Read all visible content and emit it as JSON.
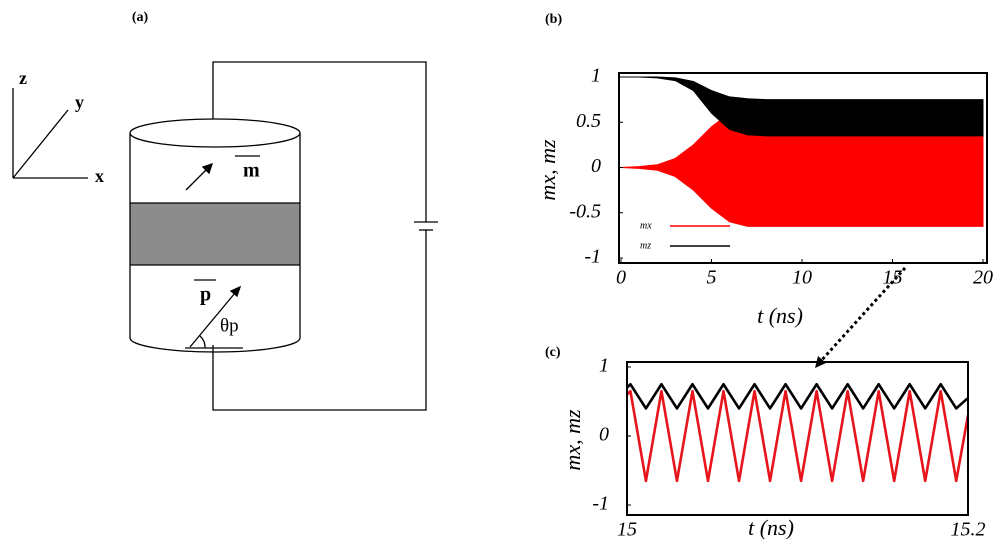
{
  "diagram": {
    "label": "(a)",
    "axis_z": "z",
    "axis_y": "y",
    "axis_x": "x",
    "magnet_m": "m",
    "magnet_p": "p",
    "angle": "θp"
  },
  "chart_data": [
    {
      "type": "band",
      "label": "(b)",
      "xlabel": "t (ns)",
      "ylabel": "mx, mz",
      "xlim": [
        0,
        20
      ],
      "ylim": [
        -1,
        1
      ],
      "xticks": [
        0,
        5,
        10,
        15,
        20
      ],
      "yticks": [
        -1,
        -0.5,
        0,
        0.5,
        1
      ],
      "x": [
        0,
        1,
        2,
        3,
        4,
        5,
        6,
        7,
        8,
        20
      ],
      "series": [
        {
          "name": "mx",
          "color": "#ff0000",
          "upper": [
            0,
            0.01,
            0.03,
            0.1,
            0.25,
            0.45,
            0.6,
            0.65,
            0.65,
            0.65
          ],
          "lower": [
            0,
            -0.01,
            -0.03,
            -0.1,
            -0.25,
            -0.45,
            -0.6,
            -0.65,
            -0.65,
            -0.65
          ]
        },
        {
          "name": "mz",
          "color": "#000000",
          "upper": [
            1,
            1,
            1,
            0.99,
            0.95,
            0.85,
            0.78,
            0.76,
            0.75,
            0.75
          ],
          "lower": [
            1,
            1,
            0.99,
            0.96,
            0.85,
            0.6,
            0.42,
            0.36,
            0.35,
            0.35
          ]
        }
      ]
    },
    {
      "type": "line",
      "label": "(c)",
      "xlabel": "t (ns)",
      "ylabel": "mx, mz",
      "xlim": [
        15,
        15.2
      ],
      "ylim": [
        -1,
        1
      ],
      "xticks": [
        15,
        15.2
      ],
      "yticks": [
        -1,
        0,
        1
      ],
      "x": [
        15,
        15.002,
        15.0111,
        15.0202,
        15.0293,
        15.0384,
        15.0475,
        15.0566,
        15.0657,
        15.0748,
        15.0839,
        15.093,
        15.1021,
        15.1112,
        15.1203,
        15.1294,
        15.1385,
        15.1476,
        15.1567,
        15.1658,
        15.1749,
        15.184,
        15.1931,
        15.2
      ],
      "series": [
        {
          "name": "mx",
          "color": "#e8141c",
          "values": [
            0.6,
            0.65,
            -0.65,
            0.65,
            -0.65,
            0.65,
            -0.65,
            0.65,
            -0.65,
            0.65,
            -0.65,
            0.65,
            -0.65,
            0.65,
            -0.65,
            0.65,
            -0.65,
            0.65,
            -0.65,
            0.65,
            -0.65,
            0.65,
            -0.65,
            0.3
          ]
        },
        {
          "name": "mz",
          "color": "#000000",
          "values": [
            0.7,
            0.75,
            0.4,
            0.75,
            0.4,
            0.75,
            0.4,
            0.75,
            0.4,
            0.75,
            0.4,
            0.75,
            0.4,
            0.75,
            0.4,
            0.75,
            0.4,
            0.75,
            0.4,
            0.75,
            0.4,
            0.75,
            0.4,
            0.55
          ]
        }
      ]
    }
  ]
}
